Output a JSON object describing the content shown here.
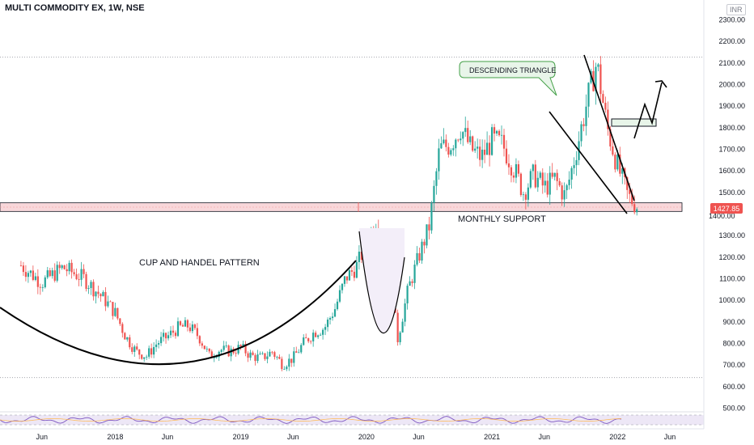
{
  "header": {
    "title": "MULTI COMMODITY EX, 1W, NSE",
    "currency": "INR"
  },
  "chart_data": {
    "type": "candlestick",
    "symbol": "MULTI COMMODITY EX",
    "interval": "1W",
    "exchange": "NSE",
    "ylim": [
      500,
      2300
    ],
    "y_ticks": [
      500,
      600,
      700,
      800,
      900,
      1000,
      1100,
      1200,
      1300,
      1400,
      1500,
      1600,
      1700,
      1800,
      1900,
      2000,
      2100,
      2200,
      2300
    ],
    "x_ticks": [
      "Jun",
      "2018",
      "Jun",
      "2019",
      "Jun",
      "2020",
      "Jun",
      "2021",
      "Jun",
      "2022",
      "Jun"
    ],
    "x_tick_dates": [
      "2017-06",
      "2018-01",
      "2018-06",
      "2019-01",
      "2019-06",
      "2020-01",
      "2020-06",
      "2021-01",
      "2021-06",
      "2022-01",
      "2022-06"
    ],
    "last_price": "1427.85",
    "price_path": [
      [
        "2017-04",
        1160
      ],
      [
        "2017-06",
        1080
      ],
      [
        "2017-08",
        1150
      ],
      [
        "2017-10",
        1100
      ],
      [
        "2017-12",
        1000
      ],
      [
        "2018-01",
        940
      ],
      [
        "2018-02",
        830
      ],
      [
        "2018-03",
        760
      ],
      [
        "2018-04",
        740
      ],
      [
        "2018-05",
        800
      ],
      [
        "2018-06",
        830
      ],
      [
        "2018-07",
        870
      ],
      [
        "2018-08",
        880
      ],
      [
        "2018-09",
        830
      ],
      [
        "2018-10",
        740
      ],
      [
        "2018-11",
        770
      ],
      [
        "2018-12",
        760
      ],
      [
        "2019-01",
        780
      ],
      [
        "2019-02",
        740
      ],
      [
        "2019-03",
        730
      ],
      [
        "2019-04",
        760
      ],
      [
        "2019-05",
        700
      ],
      [
        "2019-06",
        730
      ],
      [
        "2019-07",
        800
      ],
      [
        "2019-08",
        850
      ],
      [
        "2019-09",
        870
      ],
      [
        "2019-10",
        960
      ],
      [
        "2019-11",
        1100
      ],
      [
        "2019-12",
        1150
      ],
      [
        "2020-01",
        1260
      ],
      [
        "2020-02",
        1380
      ],
      [
        "2020-03",
        1200
      ],
      [
        "2020-04",
        820
      ],
      [
        "2020-05",
        1050
      ],
      [
        "2020-06",
        1200
      ],
      [
        "2020-07",
        1340
      ],
      [
        "2020-08",
        1700
      ],
      [
        "2020-09",
        1720
      ],
      [
        "2020-10",
        1800
      ],
      [
        "2020-11",
        1700
      ],
      [
        "2020-12",
        1660
      ],
      [
        "2021-01",
        1740
      ],
      [
        "2021-02",
        1720
      ],
      [
        "2021-03",
        1620
      ],
      [
        "2021-04",
        1500
      ],
      [
        "2021-05",
        1580
      ],
      [
        "2021-06",
        1520
      ],
      [
        "2021-07",
        1560
      ],
      [
        "2021-08",
        1480
      ],
      [
        "2021-09",
        1680
      ],
      [
        "2021-10",
        1900
      ],
      [
        "2021-11",
        2100
      ],
      [
        "2021-12",
        1800
      ],
      [
        "2022-01",
        1620
      ],
      [
        "2022-02",
        1480
      ],
      [
        "2022-03",
        1427.85
      ]
    ],
    "rsi_pane": {
      "bands": [
        30,
        70
      ]
    },
    "annotations": [
      {
        "kind": "label",
        "text": "CUP AND HANDEL PATTERN"
      },
      {
        "kind": "label",
        "text": "MONTHLY SUPPORT"
      },
      {
        "kind": "callout",
        "text": "DESCENDING TRIANGLE"
      },
      {
        "kind": "support_zone",
        "y_from": 1410,
        "y_to": 1450
      }
    ],
    "colors": {
      "up": "#26a69a",
      "down": "#ef5350",
      "zone": "#f8d7da",
      "callout_bg": "#e8f5e9",
      "callout_border": "#43a047",
      "price_tag": "#ef5350",
      "rsi_line": "#7e57c2",
      "rsi_band_fill": "#ede7f6"
    },
    "legend": "none",
    "grid": false
  }
}
